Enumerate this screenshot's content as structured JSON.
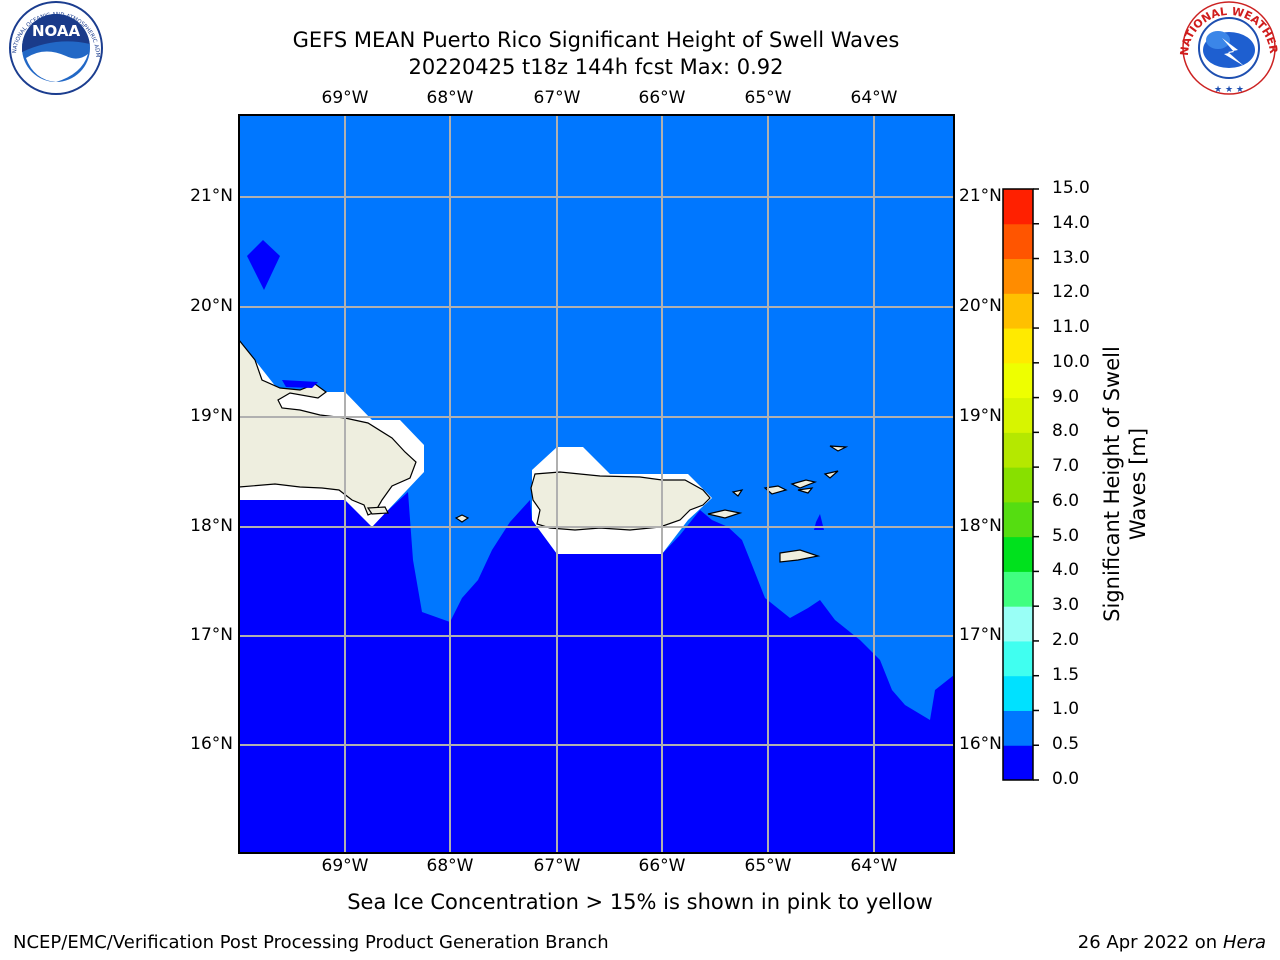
{
  "header": {
    "title_line1": "GEFS MEAN Puerto Rico Significant Height of Swell Waves",
    "title_line2": "20220425 t18z 144h fcst   Max: 0.92"
  },
  "logos": {
    "left": {
      "name": "NOAA",
      "ring_text": "NATIONAL OCEANIC AND ATMOSPHERIC ADMINISTRATION · U.S. DEPARTMENT OF COMMERCE"
    },
    "right": {
      "ring_text": "NATIONAL WEATHER SERVICE"
    }
  },
  "map": {
    "lon_labels": [
      "69°W",
      "68°W",
      "67°W",
      "66°W",
      "65°W",
      "64°W"
    ],
    "lat_labels": [
      "21°N",
      "20°N",
      "19°N",
      "18°N",
      "17°N",
      "16°N"
    ],
    "colors": {
      "deep_swell": "#0000ff",
      "shallow_swell": "#0077ff",
      "land": "#eeeedf",
      "masked": "#ffffff",
      "grid": "#b0b0b0"
    }
  },
  "colorbar": {
    "label_line1": "Significant Height of Swell",
    "label_line2": "Waves [m]",
    "levels": [
      "0.0",
      "0.5",
      "1.0",
      "1.5",
      "2.0",
      "3.0",
      "4.0",
      "5.0",
      "6.0",
      "7.0",
      "8.0",
      "9.0",
      "10.0",
      "11.0",
      "12.0",
      "13.0",
      "14.0",
      "15.0"
    ],
    "colors": [
      "#0000ff",
      "#0077ff",
      "#00e1ff",
      "#40fff0",
      "#99fff6",
      "#40ff80",
      "#00e11d",
      "#55dd11",
      "#88e000",
      "#b5e800",
      "#d7f500",
      "#eeff00",
      "#ffea00",
      "#ffc000",
      "#ff8c00",
      "#ff5500",
      "#ff2000"
    ]
  },
  "caption": "Sea Ice Concentration > 15% is shown in pink to yellow",
  "footer": {
    "left": "NCEP/EMC/Verification Post Processing Product Generation Branch",
    "date": "26 Apr 2022 on ",
    "machine": "Hera"
  }
}
